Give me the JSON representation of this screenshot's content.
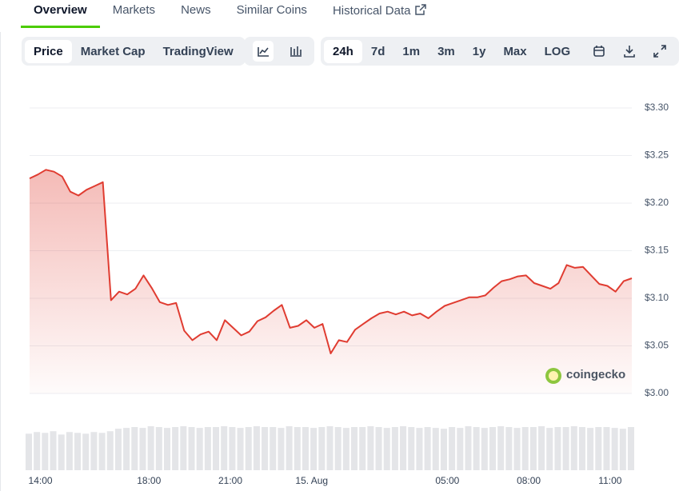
{
  "tabs": [
    "Overview",
    "Markets",
    "News",
    "Similar Coins",
    "Historical Data"
  ],
  "chart_views": [
    "Price",
    "Market Cap",
    "TradingView"
  ],
  "ranges": [
    "24h",
    "7d",
    "1m",
    "3m",
    "1y",
    "Max",
    "LOG"
  ],
  "watermark": "coingecko",
  "chart_data": {
    "type": "line",
    "color": "#e03c31",
    "x": [
      13.6,
      13.9,
      14.2,
      14.5,
      14.8,
      15.1,
      15.4,
      15.7,
      16,
      16.3,
      16.6,
      16.9,
      17.2,
      17.5,
      17.8,
      18.1,
      18.4,
      18.7,
      19,
      19.3,
      19.6,
      19.9,
      20.2,
      20.5,
      20.8,
      21.1,
      21.4,
      21.7,
      22,
      22.3,
      22.6,
      22.9,
      23.2,
      23.5,
      23.8,
      24.1,
      24.4,
      24.7,
      25,
      25.3,
      25.6,
      25.9,
      26.2,
      26.5,
      26.8,
      27.1,
      27.4,
      27.7,
      28,
      28.3,
      28.6,
      28.9,
      29.2,
      29.5,
      29.8,
      30.1,
      30.4,
      30.7,
      31,
      31.3,
      31.6,
      31.9,
      32.2,
      32.5,
      32.8,
      33.1,
      33.4,
      33.7,
      34,
      34.3,
      34.6,
      34.9,
      35.2,
      35.5,
      35.8
    ],
    "values": [
      3.226,
      3.23,
      3.235,
      3.233,
      3.228,
      3.212,
      3.208,
      3.214,
      3.218,
      3.222,
      3.098,
      3.107,
      3.104,
      3.11,
      3.124,
      3.111,
      3.096,
      3.093,
      3.095,
      3.066,
      3.056,
      3.062,
      3.065,
      3.056,
      3.077,
      3.069,
      3.061,
      3.065,
      3.076,
      3.08,
      3.087,
      3.093,
      3.069,
      3.071,
      3.077,
      3.069,
      3.073,
      3.042,
      3.056,
      3.054,
      3.067,
      3.073,
      3.079,
      3.084,
      3.086,
      3.083,
      3.086,
      3.082,
      3.084,
      3.079,
      3.086,
      3.092,
      3.095,
      3.098,
      3.101,
      3.101,
      3.103,
      3.111,
      3.118,
      3.12,
      3.123,
      3.124,
      3.116,
      3.113,
      3.11,
      3.116,
      3.135,
      3.132,
      3.133,
      3.124,
      3.115,
      3.113,
      3.107,
      3.118,
      3.121
    ],
    "volume": {
      "color": "#e4e5e8",
      "values": [
        44,
        46,
        45,
        47,
        43,
        46,
        45,
        44,
        46,
        45,
        47,
        50,
        51,
        52,
        51,
        53,
        52,
        51,
        52,
        53,
        52,
        51,
        52,
        52,
        53,
        52,
        51,
        52,
        53,
        52,
        52,
        51,
        53,
        52,
        52,
        51,
        52,
        53,
        52,
        51,
        52,
        52,
        53,
        52,
        51,
        52,
        53,
        52,
        51,
        52,
        51,
        50,
        52,
        51,
        53,
        52,
        51,
        52,
        53,
        52,
        51,
        52,
        52,
        53,
        51,
        52,
        52,
        53,
        52,
        51,
        52,
        52,
        51,
        50,
        52
      ]
    },
    "xlim": [
      13.6,
      35.8
    ],
    "ylim": [
      3.0,
      3.3
    ],
    "xticks": [
      {
        "value": 14,
        "label": "14:00"
      },
      {
        "value": 18,
        "label": "18:00"
      },
      {
        "value": 21,
        "label": "21:00"
      },
      {
        "value": 24,
        "label": "15. Aug"
      },
      {
        "value": 29,
        "label": "05:00"
      },
      {
        "value": 32,
        "label": "08:00"
      },
      {
        "value": 35,
        "label": "11:00"
      }
    ],
    "yticks": [
      {
        "value": 3.0,
        "label": "$3.00"
      },
      {
        "value": 3.05,
        "label": "$3.05"
      },
      {
        "value": 3.1,
        "label": "$3.10"
      },
      {
        "value": 3.15,
        "label": "$3.15"
      },
      {
        "value": 3.2,
        "label": "$3.20"
      },
      {
        "value": 3.25,
        "label": "$3.25"
      },
      {
        "value": 3.3,
        "label": "$3.30"
      }
    ],
    "grid": true
  }
}
